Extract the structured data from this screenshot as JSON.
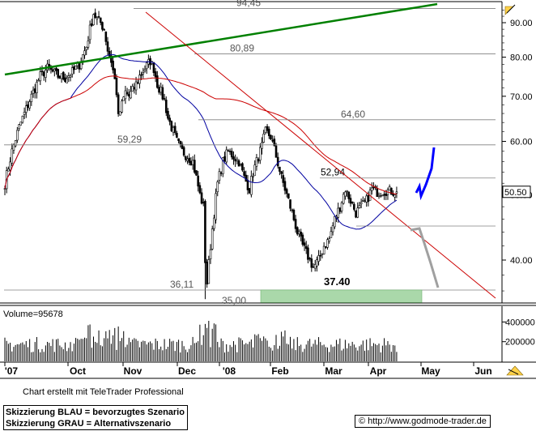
{
  "chart_data": {
    "type": "candlestick",
    "ylim": [
      35,
      97
    ],
    "y_ticks": [
      "90.00",
      "80.00",
      "70.00",
      "60.00",
      "50.00",
      "40.00"
    ],
    "y_tick_values": [
      90,
      80,
      70,
      60,
      50,
      40
    ],
    "x_ticks": [
      "'07",
      "Oct",
      "Nov",
      "Dec",
      "'08",
      "Feb",
      "Mar",
      "Apr",
      "May",
      "Jun"
    ],
    "levels": [
      {
        "label": "94,45",
        "value": 94.45
      },
      {
        "label": "80,89",
        "value": 80.89
      },
      {
        "label": "64,60",
        "value": 64.6
      },
      {
        "label": "59,29",
        "value": 59.29
      },
      {
        "label": "52,94",
        "value": 52.94
      },
      {
        "label": "36,11",
        "value": 36.11
      },
      {
        "label": "35,00",
        "value": 35.0
      }
    ],
    "annotations": [
      {
        "label": "37.40",
        "value": 37.4
      }
    ],
    "last_price": "50.50",
    "volume": {
      "label": "Volume=95678",
      "ticks": [
        "400000",
        "200000"
      ],
      "tick_values": [
        400000,
        200000
      ],
      "ylim": [
        0,
        560000
      ]
    }
  },
  "legend": {
    "blue": "Skizzierung BLAU = bevorzugtes Szenario",
    "grey": "Skizzierung GRAU = Alternativszenario"
  },
  "credit": "Chart erstellt mit TeleTrader Professional",
  "copyright": {
    "symbol": "©",
    "url": "http://www.godmode-trader.de"
  },
  "colors": {
    "candle": "#000000",
    "ma_short": "#0000a0",
    "ma_long": "#cc0000",
    "downtrend": "#cc0000",
    "uptrend": "#008000",
    "scenario_blue": "#0000ff",
    "scenario_grey": "#a0a0a0",
    "support_zone": "#aad8aa"
  }
}
